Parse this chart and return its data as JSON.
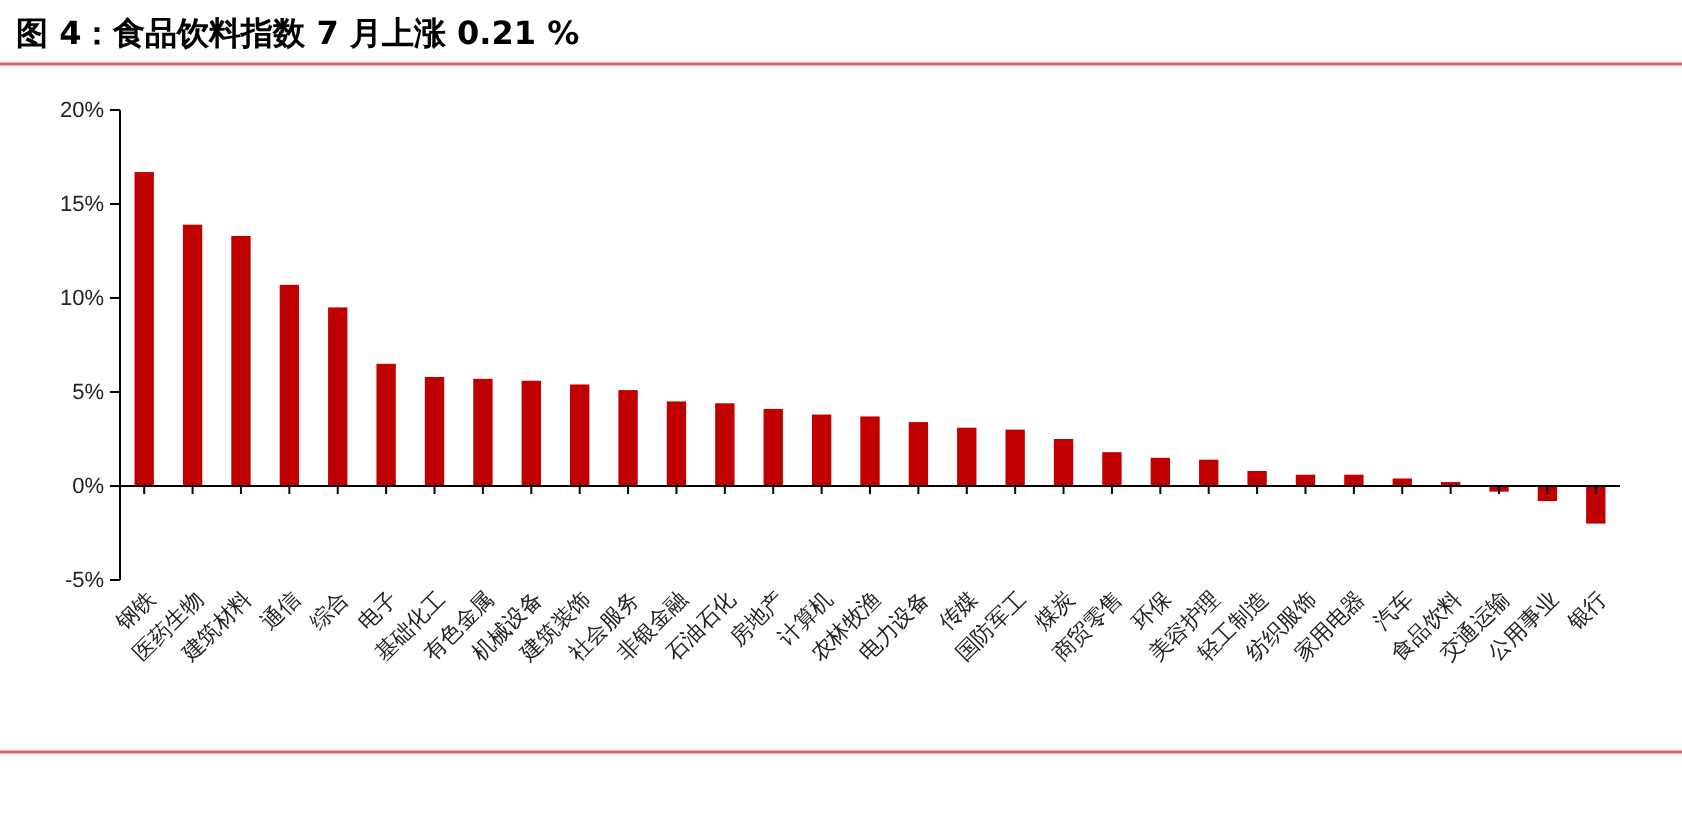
{
  "chart_data": {
    "type": "bar",
    "title": "图 4：食品饮料指数 7 月上涨 0.21 %",
    "categories": [
      "钢铁",
      "医药生物",
      "建筑材料",
      "通信",
      "综合",
      "电子",
      "基础化工",
      "有色金属",
      "机械设备",
      "建筑装饰",
      "社会服务",
      "非银金融",
      "石油石化",
      "房地产",
      "计算机",
      "农林牧渔",
      "电力设备",
      "传媒",
      "国防军工",
      "煤炭",
      "商贸零售",
      "环保",
      "美容护理",
      "轻工制造",
      "纺织服饰",
      "家用电器",
      "汽车",
      "食品饮料",
      "交通运输",
      "公用事业",
      "银行"
    ],
    "values": [
      16.7,
      13.9,
      13.3,
      10.7,
      9.5,
      6.5,
      5.8,
      5.7,
      5.6,
      5.4,
      5.1,
      4.5,
      4.4,
      4.1,
      3.8,
      3.7,
      3.4,
      3.1,
      3.0,
      2.5,
      1.8,
      1.5,
      1.4,
      0.8,
      0.6,
      0.6,
      0.4,
      0.21,
      -0.3,
      -0.8,
      -2.0
    ],
    "color": "#c00000",
    "ylim": [
      -5,
      20
    ],
    "yticks": [
      {
        "value": -5,
        "label": "-5%"
      },
      {
        "value": 0,
        "label": "0%"
      },
      {
        "value": 5,
        "label": "5%"
      },
      {
        "value": 10,
        "label": "10%"
      },
      {
        "value": 15,
        "label": "15%"
      },
      {
        "value": 20,
        "label": "20%"
      }
    ]
  }
}
